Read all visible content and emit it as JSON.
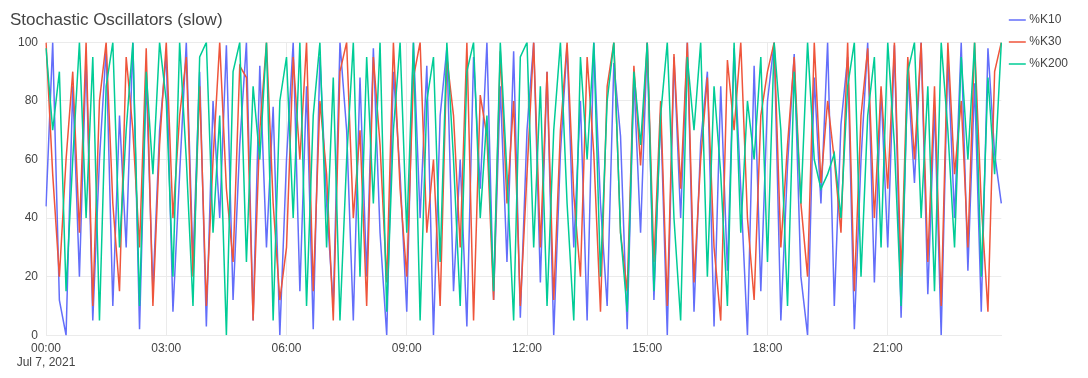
{
  "chart_data": {
    "type": "line",
    "title": "Stochastic Oscillators (slow)",
    "categories": [
      "00:00\nJul 7, 2021",
      null,
      null,
      null,
      null,
      null,
      null,
      null,
      null,
      null,
      null,
      null,
      null,
      null,
      null,
      null,
      null,
      null,
      "03:00",
      null,
      null,
      null,
      null,
      null,
      null,
      null,
      null,
      null,
      null,
      null,
      null,
      null,
      null,
      null,
      null,
      null,
      "06:00",
      null,
      null,
      null,
      null,
      null,
      null,
      null,
      null,
      null,
      null,
      null,
      null,
      null,
      null,
      null,
      null,
      null,
      "09:00",
      null,
      null,
      null,
      null,
      null,
      null,
      null,
      null,
      null,
      null,
      null,
      null,
      null,
      null,
      null,
      null,
      null,
      "12:00",
      null,
      null,
      null,
      null,
      null,
      null,
      null,
      null,
      null,
      null,
      null,
      null,
      null,
      null,
      null,
      null,
      null,
      "15:00",
      null,
      null,
      null,
      null,
      null,
      null,
      null,
      null,
      null,
      null,
      null,
      null,
      null,
      null,
      null,
      null,
      null,
      "18:00",
      null,
      null,
      null,
      null,
      null,
      null,
      null,
      null,
      null,
      null,
      null,
      null,
      null,
      null,
      null,
      null,
      null,
      "21:00",
      null,
      null,
      null,
      null,
      null,
      null,
      null,
      null,
      null,
      null,
      null,
      null,
      null,
      null,
      null,
      null,
      null
    ],
    "series": [
      {
        "name": "%K10",
        "color": "#636efa",
        "values": [
          44,
          100,
          12,
          0,
          85,
          20,
          95,
          5,
          60,
          98,
          10,
          75,
          30,
          100,
          2,
          88,
          15,
          70,
          96,
          8,
          55,
          100,
          25,
          90,
          3,
          80,
          40,
          99,
          12,
          65,
          100,
          5,
          92,
          30,
          78,
          0,
          60,
          100,
          15,
          85,
          2,
          95,
          45,
          10,
          100,
          70,
          5,
          88,
          20,
          98,
          35,
          0,
          90,
          55,
          8,
          100,
          40,
          92,
          0,
          75,
          98,
          15,
          60,
          3,
          95,
          50,
          100,
          12,
          85,
          25,
          97,
          6,
          70,
          100,
          18,
          90,
          0,
          62,
          99,
          30,
          80,
          5,
          100,
          45,
          10,
          93,
          68,
          2,
          88,
          35,
          100,
          12,
          76,
          0,
          95,
          40,
          100,
          8,
          66,
          90,
          3,
          85,
          22,
          98,
          50,
          0,
          92,
          15,
          80,
          100,
          5,
          58,
          96,
          20,
          0,
          88,
          45,
          100,
          10,
          72,
          95,
          2,
          60,
          100,
          18,
          84,
          30,
          99,
          6,
          90,
          52,
          100,
          14,
          78,
          0,
          95,
          40,
          100,
          22,
          86,
          8,
          98,
          62,
          45
        ]
      },
      {
        "name": "%K30",
        "color": "#ef553b",
        "values": [
          100,
          55,
          20,
          60,
          90,
          35,
          100,
          10,
          80,
          100,
          45,
          15,
          95,
          70,
          30,
          98,
          10,
          65,
          100,
          40,
          75,
          95,
          20,
          85,
          10,
          60,
          100,
          50,
          25,
          92,
          88,
          5,
          70,
          100,
          45,
          12,
          30,
          95,
          60,
          100,
          15,
          80,
          55,
          5,
          90,
          100,
          40,
          70,
          10,
          95,
          65,
          18,
          100,
          50,
          20,
          88,
          100,
          35,
          60,
          10,
          95,
          75,
          30,
          100,
          5,
          82,
          68,
          12,
          97,
          45,
          80,
          10,
          55,
          100,
          30,
          90,
          12,
          70,
          100,
          48,
          20,
          95,
          62,
          8,
          85,
          100,
          35,
          15,
          92,
          58,
          100,
          25,
          80,
          10,
          96,
          50,
          100,
          18,
          60,
          88,
          30,
          5,
          94,
          70,
          100,
          40,
          12,
          75,
          90,
          100,
          30,
          65,
          95,
          45,
          20,
          100,
          52,
          80,
          60,
          35,
          100,
          15,
          75,
          98,
          40,
          85,
          50,
          100,
          20,
          95,
          60,
          100,
          25,
          85,
          10,
          100,
          55,
          80,
          30,
          100,
          45,
          8,
          90,
          100
        ]
      },
      {
        "name": "%K200",
        "color": "#00cc96",
        "values": [
          98,
          70,
          90,
          15,
          60,
          100,
          40,
          95,
          5,
          85,
          100,
          30,
          70,
          100,
          10,
          90,
          55,
          100,
          80,
          20,
          100,
          60,
          10,
          95,
          100,
          35,
          75,
          0,
          90,
          100,
          25,
          85,
          60,
          100,
          5,
          80,
          95,
          40,
          100,
          10,
          75,
          100,
          30,
          88,
          5,
          60,
          100,
          20,
          95,
          45,
          100,
          8,
          70,
          100,
          35,
          100,
          5,
          80,
          95,
          25,
          100,
          60,
          10,
          90,
          100,
          40,
          75,
          15,
          100,
          55,
          5,
          95,
          100,
          30,
          85,
          10,
          70,
          100,
          45,
          5,
          95,
          60,
          100,
          20,
          80,
          100,
          35,
          8,
          90,
          65,
          100,
          15,
          75,
          100,
          40,
          5,
          95,
          70,
          100,
          20,
          85,
          55,
          10,
          100,
          35,
          80,
          60,
          95,
          25,
          100,
          70,
          10,
          90,
          45,
          100,
          60,
          50,
          55,
          62,
          40,
          85,
          100,
          20,
          75,
          95,
          30,
          100,
          65,
          10,
          90,
          100,
          40,
          85,
          15,
          100,
          70,
          30,
          95,
          60,
          100,
          20,
          88,
          55,
          100
        ]
      }
    ],
    "ylim": [
      0,
      100
    ],
    "yticks": [
      0,
      20,
      40,
      60,
      80,
      100
    ],
    "grid": true,
    "legend": "right"
  }
}
